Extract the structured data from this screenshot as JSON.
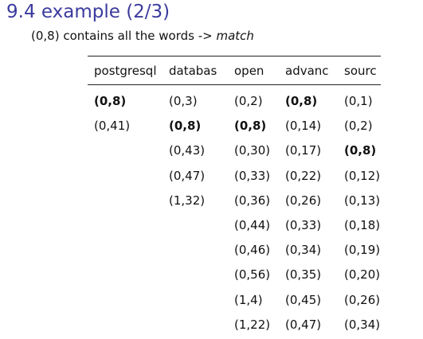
{
  "slide": {
    "title": "9.4 example (2/3)",
    "subtitle_prefix": "(0,8) contains all the words -> ",
    "subtitle_emphasis": "match"
  },
  "table": {
    "columns": [
      {
        "header": "postgresql",
        "cells": [
          {
            "text": "(0,8)",
            "bold": true
          },
          {
            "text": "(0,41)",
            "bold": false
          }
        ]
      },
      {
        "header": "databas",
        "cells": [
          {
            "text": "(0,3)",
            "bold": false
          },
          {
            "text": "(0,8)",
            "bold": true
          },
          {
            "text": "(0,43)",
            "bold": false
          },
          {
            "text": "(0,47)",
            "bold": false
          },
          {
            "text": "(1,32)",
            "bold": false
          }
        ]
      },
      {
        "header": "open",
        "cells": [
          {
            "text": "(0,2)",
            "bold": false
          },
          {
            "text": "(0,8)",
            "bold": true
          },
          {
            "text": "(0,30)",
            "bold": false
          },
          {
            "text": "(0,33)",
            "bold": false
          },
          {
            "text": "(0,36)",
            "bold": false
          },
          {
            "text": "(0,44)",
            "bold": false
          },
          {
            "text": "(0,46)",
            "bold": false
          },
          {
            "text": "(0,56)",
            "bold": false
          },
          {
            "text": "(1,4)",
            "bold": false
          },
          {
            "text": "(1,22)",
            "bold": false
          }
        ]
      },
      {
        "header": "advanc",
        "cells": [
          {
            "text": "(0,8)",
            "bold": true
          },
          {
            "text": "(0,14)",
            "bold": false
          },
          {
            "text": "(0,17)",
            "bold": false
          },
          {
            "text": "(0,22)",
            "bold": false
          },
          {
            "text": "(0,26)",
            "bold": false
          },
          {
            "text": "(0,33)",
            "bold": false
          },
          {
            "text": "(0,34)",
            "bold": false
          },
          {
            "text": "(0,35)",
            "bold": false
          },
          {
            "text": "(0,45)",
            "bold": false
          },
          {
            "text": "(0,47)",
            "bold": false
          }
        ]
      },
      {
        "header": "sourc",
        "cells": [
          {
            "text": "(0,1)",
            "bold": false
          },
          {
            "text": "(0,2)",
            "bold": false
          },
          {
            "text": "(0,8)",
            "bold": true
          },
          {
            "text": "(0,12)",
            "bold": false
          },
          {
            "text": "(0,13)",
            "bold": false
          },
          {
            "text": "(0,18)",
            "bold": false
          },
          {
            "text": "(0,19)",
            "bold": false
          },
          {
            "text": "(0,20)",
            "bold": false
          },
          {
            "text": "(0,26)",
            "bold": false
          },
          {
            "text": "(0,34)",
            "bold": false
          }
        ]
      }
    ]
  }
}
